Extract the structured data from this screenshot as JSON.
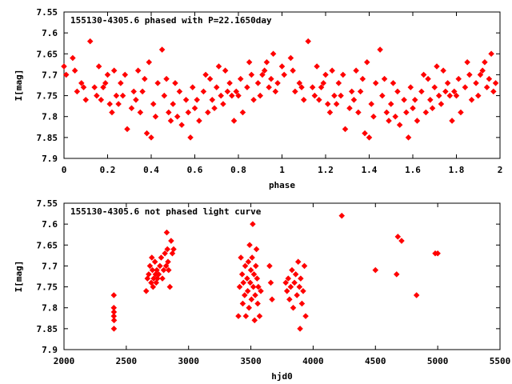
{
  "chart_data": [
    {
      "type": "scatter",
      "title": "155130-4305.6 phased with P=22.1650day",
      "xlabel": "phase",
      "ylabel": "I[mag]",
      "xlim": [
        0,
        2
      ],
      "ylim": [
        7.55,
        7.9
      ],
      "y_inverted": true,
      "x_ticks": [
        "0",
        "0.2",
        "0.4",
        "0.6",
        "0.8",
        "1",
        "1.2",
        "1.4",
        "1.6",
        "1.8",
        "2"
      ],
      "y_ticks": [
        "7.55",
        "7.6",
        "7.65",
        "7.7",
        "7.75",
        "7.8",
        "7.85",
        "7.9"
      ],
      "marker_color": "#ff0000",
      "base_points": [
        [
          0.0,
          7.68
        ],
        [
          0.01,
          7.7
        ],
        [
          0.04,
          7.66
        ],
        [
          0.05,
          7.69
        ],
        [
          0.06,
          7.74
        ],
        [
          0.08,
          7.72
        ],
        [
          0.09,
          7.73
        ],
        [
          0.1,
          7.76
        ],
        [
          0.12,
          7.62
        ],
        [
          0.14,
          7.73
        ],
        [
          0.15,
          7.75
        ],
        [
          0.16,
          7.68
        ],
        [
          0.17,
          7.76
        ],
        [
          0.18,
          7.73
        ],
        [
          0.19,
          7.72
        ],
        [
          0.2,
          7.7
        ],
        [
          0.21,
          7.77
        ],
        [
          0.22,
          7.79
        ],
        [
          0.23,
          7.69
        ],
        [
          0.24,
          7.75
        ],
        [
          0.25,
          7.77
        ],
        [
          0.26,
          7.72
        ],
        [
          0.27,
          7.75
        ],
        [
          0.28,
          7.7
        ],
        [
          0.29,
          7.83
        ],
        [
          0.31,
          7.78
        ],
        [
          0.32,
          7.74
        ],
        [
          0.33,
          7.76
        ],
        [
          0.34,
          7.69
        ],
        [
          0.35,
          7.79
        ],
        [
          0.36,
          7.74
        ],
        [
          0.37,
          7.71
        ],
        [
          0.38,
          7.84
        ],
        [
          0.39,
          7.67
        ],
        [
          0.4,
          7.85
        ],
        [
          0.41,
          7.77
        ],
        [
          0.42,
          7.8
        ],
        [
          0.43,
          7.72
        ],
        [
          0.45,
          7.64
        ],
        [
          0.46,
          7.75
        ],
        [
          0.47,
          7.71
        ],
        [
          0.48,
          7.79
        ],
        [
          0.49,
          7.81
        ],
        [
          0.5,
          7.77
        ],
        [
          0.51,
          7.72
        ],
        [
          0.52,
          7.8
        ],
        [
          0.53,
          7.74
        ],
        [
          0.54,
          7.82
        ],
        [
          0.56,
          7.76
        ],
        [
          0.57,
          7.79
        ],
        [
          0.58,
          7.85
        ],
        [
          0.59,
          7.73
        ],
        [
          0.6,
          7.78
        ],
        [
          0.61,
          7.76
        ],
        [
          0.62,
          7.81
        ],
        [
          0.64,
          7.74
        ],
        [
          0.65,
          7.7
        ],
        [
          0.66,
          7.79
        ],
        [
          0.67,
          7.71
        ],
        [
          0.68,
          7.76
        ],
        [
          0.69,
          7.78
        ],
        [
          0.7,
          7.73
        ],
        [
          0.71,
          7.68
        ],
        [
          0.72,
          7.75
        ],
        [
          0.73,
          7.77
        ],
        [
          0.74,
          7.69
        ],
        [
          0.75,
          7.74
        ],
        [
          0.76,
          7.72
        ],
        [
          0.77,
          7.75
        ],
        [
          0.78,
          7.81
        ],
        [
          0.79,
          7.74
        ],
        [
          0.8,
          7.75
        ],
        [
          0.81,
          7.71
        ],
        [
          0.82,
          7.79
        ],
        [
          0.84,
          7.73
        ],
        [
          0.85,
          7.67
        ],
        [
          0.86,
          7.7
        ],
        [
          0.87,
          7.76
        ],
        [
          0.89,
          7.72
        ],
        [
          0.9,
          7.75
        ],
        [
          0.91,
          7.7
        ],
        [
          0.92,
          7.69
        ],
        [
          0.93,
          7.67
        ],
        [
          0.94,
          7.73
        ],
        [
          0.95,
          7.71
        ],
        [
          0.96,
          7.65
        ],
        [
          0.97,
          7.74
        ],
        [
          0.98,
          7.72
        ]
      ],
      "note_shift": 1
    },
    {
      "type": "scatter",
      "title": "155130-4305.6 not phased light curve",
      "xlabel": "hjd0",
      "ylabel": "I[mag]",
      "xlim": [
        2000,
        5500
      ],
      "ylim": [
        7.55,
        7.9
      ],
      "y_inverted": true,
      "x_ticks": [
        "2000",
        "2500",
        "3000",
        "3500",
        "4000",
        "4500",
        "5000",
        "5500"
      ],
      "y_ticks": [
        "7.55",
        "7.6",
        "7.65",
        "7.7",
        "7.75",
        "7.8",
        "7.85",
        "7.9"
      ],
      "marker_color": "#ff0000",
      "points": [
        [
          2400,
          7.77
        ],
        [
          2400,
          7.8
        ],
        [
          2401,
          7.81
        ],
        [
          2400,
          7.82
        ],
        [
          2402,
          7.83
        ],
        [
          2401,
          7.85
        ],
        [
          2660,
          7.76
        ],
        [
          2670,
          7.73
        ],
        [
          2680,
          7.72
        ],
        [
          2690,
          7.7
        ],
        [
          2700,
          7.74
        ],
        [
          2705,
          7.68
        ],
        [
          2710,
          7.71
        ],
        [
          2715,
          7.75
        ],
        [
          2720,
          7.73
        ],
        [
          2730,
          7.69
        ],
        [
          2735,
          7.72
        ],
        [
          2740,
          7.74
        ],
        [
          2745,
          7.71
        ],
        [
          2750,
          7.73
        ],
        [
          2760,
          7.72
        ],
        [
          2770,
          7.7
        ],
        [
          2780,
          7.68
        ],
        [
          2790,
          7.73
        ],
        [
          2800,
          7.71
        ],
        [
          2810,
          7.67
        ],
        [
          2820,
          7.7
        ],
        [
          2825,
          7.62
        ],
        [
          2830,
          7.66
        ],
        [
          2835,
          7.69
        ],
        [
          2840,
          7.71
        ],
        [
          2850,
          7.75
        ],
        [
          2860,
          7.64
        ],
        [
          2870,
          7.67
        ],
        [
          2880,
          7.66
        ],
        [
          3400,
          7.82
        ],
        [
          3410,
          7.75
        ],
        [
          3420,
          7.68
        ],
        [
          3430,
          7.72
        ],
        [
          3435,
          7.79
        ],
        [
          3440,
          7.74
        ],
        [
          3450,
          7.77
        ],
        [
          3455,
          7.7
        ],
        [
          3460,
          7.82
        ],
        [
          3470,
          7.73
        ],
        [
          3475,
          7.76
        ],
        [
          3480,
          7.69
        ],
        [
          3485,
          7.8
        ],
        [
          3490,
          7.65
        ],
        [
          3495,
          7.74
        ],
        [
          3500,
          7.71
        ],
        [
          3505,
          7.78
        ],
        [
          3510,
          7.68
        ],
        [
          3515,
          7.6
        ],
        [
          3520,
          7.75
        ],
        [
          3525,
          7.72
        ],
        [
          3530,
          7.83
        ],
        [
          3535,
          7.77
        ],
        [
          3540,
          7.7
        ],
        [
          3545,
          7.66
        ],
        [
          3550,
          7.73
        ],
        [
          3555,
          7.79
        ],
        [
          3560,
          7.75
        ],
        [
          3570,
          7.82
        ],
        [
          3580,
          7.76
        ],
        [
          3650,
          7.7
        ],
        [
          3660,
          7.74
        ],
        [
          3670,
          7.78
        ],
        [
          3780,
          7.74
        ],
        [
          3790,
          7.76
        ],
        [
          3800,
          7.73
        ],
        [
          3810,
          7.78
        ],
        [
          3820,
          7.75
        ],
        [
          3830,
          7.71
        ],
        [
          3840,
          7.8
        ],
        [
          3850,
          7.74
        ],
        [
          3860,
          7.72
        ],
        [
          3870,
          7.77
        ],
        [
          3880,
          7.69
        ],
        [
          3890,
          7.75
        ],
        [
          3895,
          7.85
        ],
        [
          3900,
          7.73
        ],
        [
          3910,
          7.79
        ],
        [
          3920,
          7.76
        ],
        [
          3930,
          7.7
        ],
        [
          3940,
          7.82
        ],
        [
          4230,
          7.58
        ],
        [
          4500,
          7.71
        ],
        [
          4670,
          7.72
        ],
        [
          4680,
          7.63
        ],
        [
          4710,
          7.64
        ],
        [
          4830,
          7.77
        ],
        [
          4980,
          7.67
        ],
        [
          5000,
          7.67
        ]
      ]
    }
  ]
}
